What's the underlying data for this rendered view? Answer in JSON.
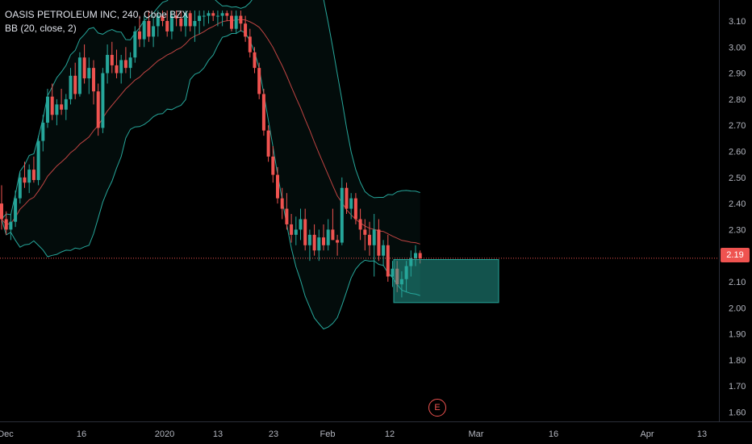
{
  "header": {
    "symbol_line": "OASIS PETROLEUM INC, 240, Cboe BZX",
    "indicator_line": "BB (20, close, 2)"
  },
  "last_price_label": "2.19",
  "earnings_marker": "E",
  "colors": {
    "up": "#26a69a",
    "down": "#ef5350",
    "band": "#26a69a",
    "basis": "#ef5350",
    "price_line": "#ef5350",
    "box_fill": "#26a69a"
  },
  "chart_data": {
    "type": "candlestick",
    "y_axis": {
      "labels": [
        "3.10",
        "3.00",
        "2.90",
        "2.80",
        "2.70",
        "2.60",
        "2.50",
        "2.40",
        "2.30",
        "2.20",
        "2.10",
        "2.00",
        "1.90",
        "1.80",
        "1.70",
        "1.60"
      ],
      "range": [
        1.57,
        3.14
      ]
    },
    "x_axis": {
      "labels": [
        "Dec",
        "16",
        "2020",
        "13",
        "23",
        "Feb",
        "12",
        "Mar",
        "16",
        "Apr",
        "13"
      ]
    },
    "last_price": 2.19,
    "bollinger": {
      "length": 20,
      "source": "close",
      "mult": 2
    },
    "highlight_box": {
      "top": 2.185,
      "bottom": 2.02
    },
    "candles": [
      [
        2.4,
        2.47,
        2.3,
        2.34
      ],
      [
        2.34,
        2.37,
        2.28,
        2.3
      ],
      [
        2.3,
        2.36,
        2.26,
        2.33
      ],
      [
        2.33,
        2.45,
        2.31,
        2.42
      ],
      [
        2.42,
        2.52,
        2.4,
        2.5
      ],
      [
        2.5,
        2.56,
        2.46,
        2.48
      ],
      [
        2.48,
        2.55,
        2.44,
        2.53
      ],
      [
        2.53,
        2.58,
        2.48,
        2.49
      ],
      [
        2.49,
        2.66,
        2.47,
        2.64
      ],
      [
        2.64,
        2.74,
        2.6,
        2.71
      ],
      [
        2.71,
        2.84,
        2.69,
        2.81
      ],
      [
        2.81,
        2.86,
        2.72,
        2.74
      ],
      [
        2.74,
        2.8,
        2.7,
        2.78
      ],
      [
        2.78,
        2.84,
        2.74,
        2.76
      ],
      [
        2.76,
        2.82,
        2.72,
        2.8
      ],
      [
        2.8,
        2.92,
        2.78,
        2.89
      ],
      [
        2.89,
        2.94,
        2.8,
        2.82
      ],
      [
        2.82,
        2.98,
        2.81,
        2.96
      ],
      [
        2.96,
        3.01,
        2.86,
        2.88
      ],
      [
        2.88,
        2.96,
        2.82,
        2.92
      ],
      [
        2.92,
        2.95,
        2.78,
        2.83
      ],
      [
        2.83,
        2.86,
        2.66,
        2.69
      ],
      [
        2.69,
        2.92,
        2.67,
        2.9
      ],
      [
        2.9,
        3.01,
        2.86,
        2.97
      ],
      [
        2.97,
        3.02,
        2.9,
        2.93
      ],
      [
        2.93,
        2.99,
        2.88,
        2.9
      ],
      [
        2.9,
        2.97,
        2.86,
        2.95
      ],
      [
        2.95,
        3.0,
        2.9,
        2.92
      ],
      [
        2.92,
        2.98,
        2.88,
        2.96
      ],
      [
        2.96,
        3.08,
        2.94,
        3.06
      ],
      [
        3.06,
        3.12,
        3.0,
        3.03
      ],
      [
        3.03,
        3.12,
        3.0,
        3.1
      ],
      [
        3.1,
        3.14,
        3.02,
        3.04
      ],
      [
        3.04,
        3.12,
        3.0,
        3.08
      ],
      [
        3.08,
        3.14,
        3.04,
        3.12
      ],
      [
        3.12,
        3.14,
        3.08,
        3.1
      ],
      [
        3.1,
        3.14,
        3.04,
        3.06
      ],
      [
        3.06,
        3.14,
        3.03,
        3.12
      ],
      [
        3.12,
        3.14,
        3.08,
        3.11
      ],
      [
        3.11,
        3.14,
        3.06,
        3.08
      ],
      [
        3.08,
        3.14,
        3.04,
        3.13
      ],
      [
        3.13,
        3.14,
        3.06,
        3.08
      ],
      [
        3.08,
        3.14,
        3.02,
        3.1
      ],
      [
        3.1,
        3.14,
        3.05,
        3.12
      ],
      [
        3.12,
        3.14,
        3.08,
        3.12
      ],
      [
        3.12,
        3.14,
        3.09,
        3.13
      ],
      [
        3.13,
        3.14,
        3.1,
        3.12
      ],
      [
        3.12,
        3.14,
        3.08,
        3.12
      ],
      [
        3.12,
        3.14,
        3.08,
        3.13
      ],
      [
        3.13,
        3.14,
        3.1,
        3.12
      ],
      [
        3.12,
        3.14,
        3.06,
        3.07
      ],
      [
        3.07,
        3.14,
        3.05,
        3.12
      ],
      [
        3.12,
        3.14,
        3.06,
        3.09
      ],
      [
        3.09,
        3.12,
        3.02,
        3.04
      ],
      [
        3.04,
        3.07,
        2.96,
        2.98
      ],
      [
        2.98,
        3.0,
        2.9,
        2.92
      ],
      [
        2.92,
        2.94,
        2.8,
        2.82
      ],
      [
        2.82,
        2.84,
        2.66,
        2.68
      ],
      [
        2.68,
        2.7,
        2.56,
        2.58
      ],
      [
        2.58,
        2.62,
        2.48,
        2.51
      ],
      [
        2.51,
        2.54,
        2.4,
        2.42
      ],
      [
        2.42,
        2.46,
        2.34,
        2.38
      ],
      [
        2.38,
        2.44,
        2.3,
        2.32
      ],
      [
        2.32,
        2.36,
        2.25,
        2.28
      ],
      [
        2.28,
        2.35,
        2.24,
        2.3
      ],
      [
        2.3,
        2.38,
        2.26,
        2.34
      ],
      [
        2.34,
        2.38,
        2.22,
        2.24
      ],
      [
        2.24,
        2.3,
        2.18,
        2.28
      ],
      [
        2.28,
        2.32,
        2.2,
        2.22
      ],
      [
        2.22,
        2.3,
        2.18,
        2.27
      ],
      [
        2.27,
        2.32,
        2.22,
        2.24
      ],
      [
        2.24,
        2.34,
        2.22,
        2.3
      ],
      [
        2.3,
        2.38,
        2.26,
        2.26
      ],
      [
        2.26,
        2.28,
        2.2,
        2.25
      ],
      [
        2.25,
        2.5,
        2.24,
        2.46
      ],
      [
        2.46,
        2.48,
        2.36,
        2.38
      ],
      [
        2.38,
        2.44,
        2.34,
        2.42
      ],
      [
        2.42,
        2.44,
        2.32,
        2.34
      ],
      [
        2.34,
        2.38,
        2.26,
        2.3
      ],
      [
        2.3,
        2.34,
        2.22,
        2.28
      ],
      [
        2.28,
        2.33,
        2.2,
        2.24
      ],
      [
        2.24,
        2.36,
        2.12,
        2.3
      ],
      [
        2.3,
        2.34,
        2.18,
        2.2
      ],
      [
        2.2,
        2.26,
        2.16,
        2.24
      ],
      [
        2.24,
        2.28,
        2.1,
        2.12
      ],
      [
        2.12,
        2.18,
        2.08,
        2.15
      ],
      [
        2.15,
        2.18,
        2.06,
        2.09
      ],
      [
        2.09,
        2.14,
        2.04,
        2.11
      ],
      [
        2.11,
        2.18,
        2.06,
        2.16
      ],
      [
        2.16,
        2.22,
        2.12,
        2.19
      ],
      [
        2.19,
        2.24,
        2.16,
        2.21
      ],
      [
        2.21,
        2.22,
        2.17,
        2.19
      ]
    ]
  }
}
